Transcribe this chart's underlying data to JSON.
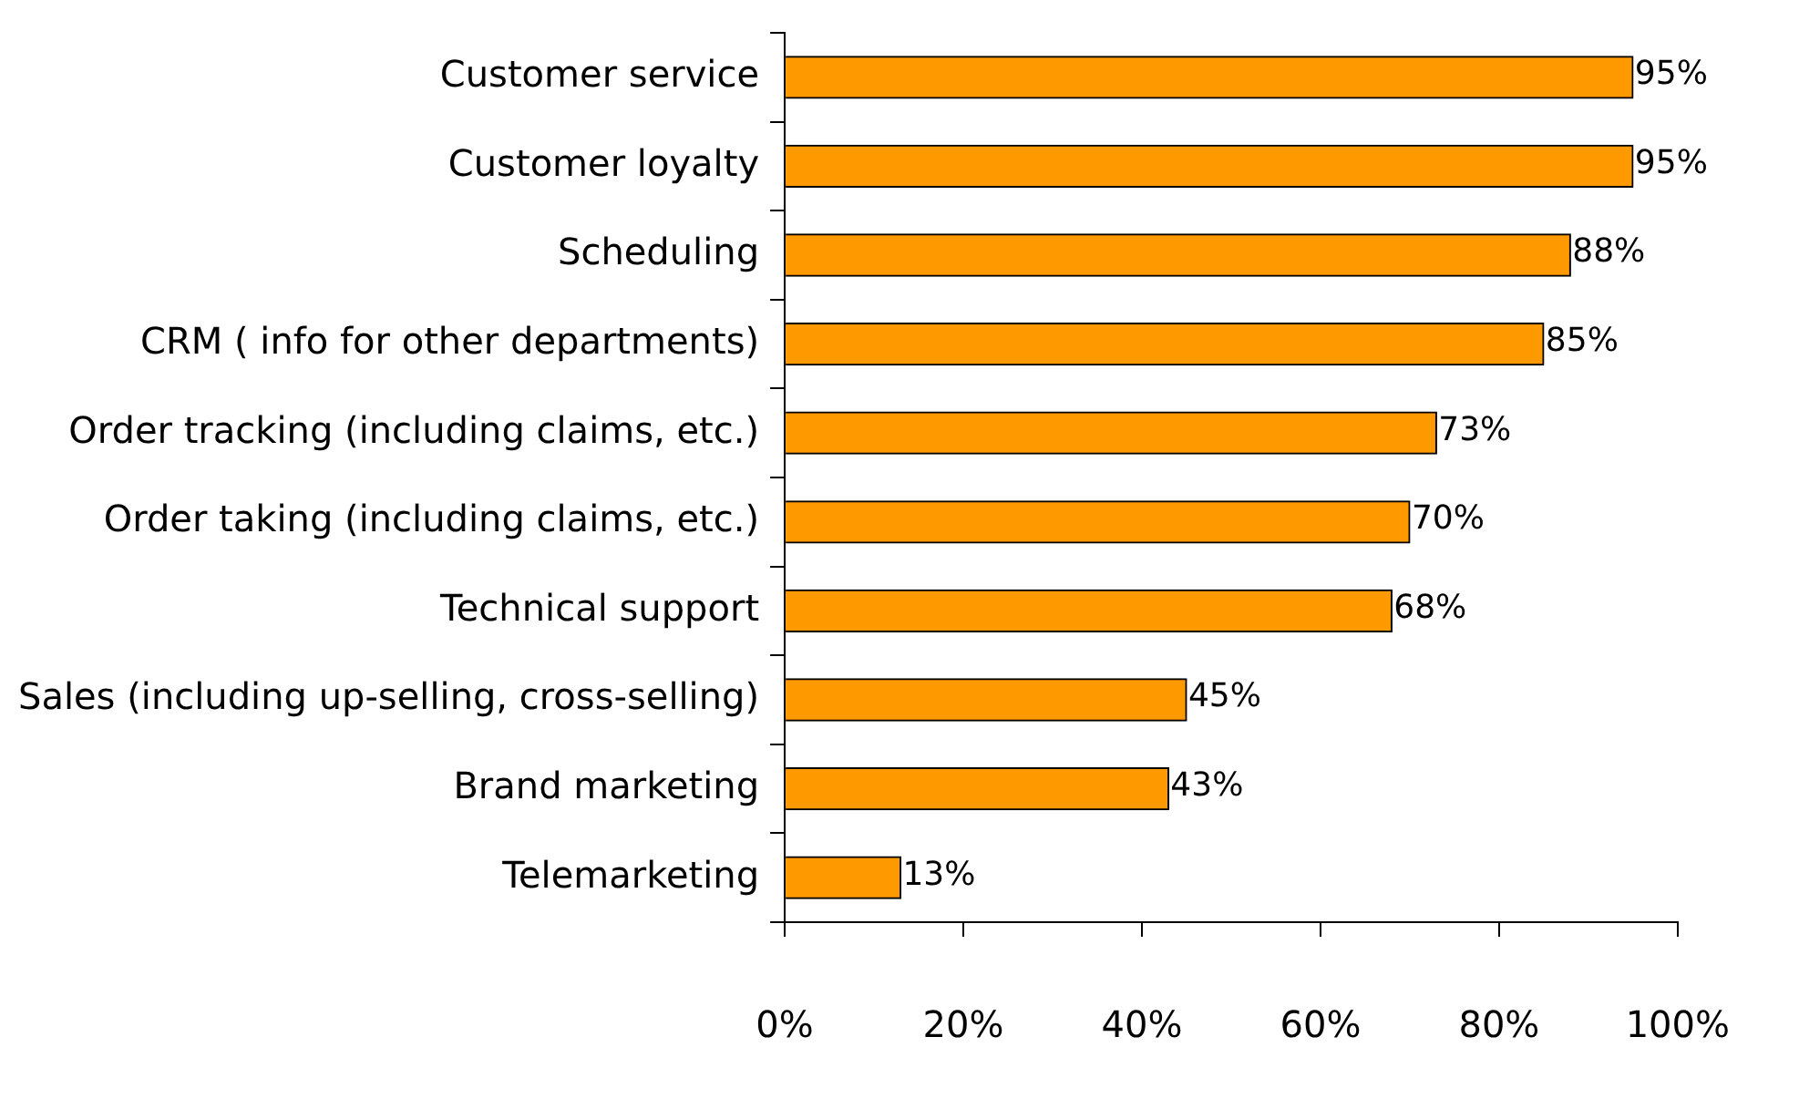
{
  "chart_data": {
    "type": "bar",
    "orientation": "horizontal",
    "categories": [
      "Customer service",
      "Customer loyalty",
      "Scheduling",
      "CRM ( info for other departments)",
      "Order tracking (including claims, etc.)",
      "Order taking (including claims, etc.)",
      "Technical support",
      "Sales (including up-selling, cross-selling)",
      "Brand marketing",
      "Telemarketing"
    ],
    "values": [
      95,
      95,
      88,
      85,
      73,
      70,
      68,
      45,
      43,
      13
    ],
    "value_labels": [
      "95%",
      "95%",
      "88%",
      "85%",
      "73%",
      "70%",
      "68%",
      "45%",
      "43%",
      "13%"
    ],
    "color": "#ff9900",
    "xlim": [
      0,
      100
    ],
    "xticks": [
      {
        "value": 0,
        "label": "0%"
      },
      {
        "value": 20,
        "label": "20%"
      },
      {
        "value": 40,
        "label": "40%"
      },
      {
        "value": 60,
        "label": "60%"
      },
      {
        "value": 80,
        "label": "80%"
      },
      {
        "value": 100,
        "label": "100%"
      }
    ],
    "grid": false,
    "legend": false
  }
}
